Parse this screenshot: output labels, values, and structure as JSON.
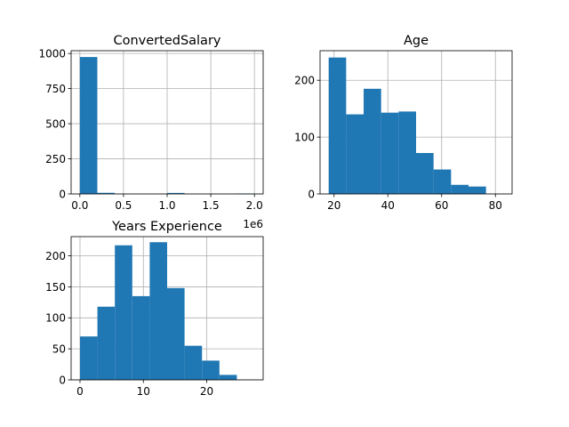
{
  "chart_data": [
    {
      "type": "bar",
      "title": "ConvertedSalary",
      "xlim": [
        -100000,
        2100000
      ],
      "ylim": [
        0,
        1020
      ],
      "xticks": [
        0,
        500000,
        1000000,
        1500000,
        2000000
      ],
      "xtick_labels": [
        "0.0",
        "0.5",
        "1.0",
        "1.5",
        "2.0"
      ],
      "x_offset_label": "1e6",
      "yticks": [
        0,
        250,
        500,
        750,
        1000
      ],
      "ytick_labels": [
        "0",
        "250",
        "500",
        "750",
        "1000"
      ],
      "grid": true,
      "bins": [
        {
          "x0": 0,
          "x1": 200000,
          "count": 975
        },
        {
          "x0": 200000,
          "x1": 400000,
          "count": 8
        },
        {
          "x0": 400000,
          "x1": 600000,
          "count": 0
        },
        {
          "x0": 600000,
          "x1": 800000,
          "count": 0
        },
        {
          "x0": 800000,
          "x1": 1000000,
          "count": 0
        },
        {
          "x0": 1000000,
          "x1": 1200000,
          "count": 7
        },
        {
          "x0": 1200000,
          "x1": 1400000,
          "count": 0
        },
        {
          "x0": 1400000,
          "x1": 1600000,
          "count": 0
        },
        {
          "x0": 1600000,
          "x1": 1800000,
          "count": 0
        },
        {
          "x0": 1800000,
          "x1": 2000000,
          "count": 2
        }
      ]
    },
    {
      "type": "bar",
      "title": "Age",
      "xlim": [
        14.8,
        86.2
      ],
      "ylim": [
        0,
        252
      ],
      "xticks": [
        20,
        40,
        60,
        80
      ],
      "xtick_labels": [
        "20",
        "40",
        "60",
        "80"
      ],
      "yticks": [
        0,
        100,
        200
      ],
      "ytick_labels": [
        "0",
        "100",
        "200"
      ],
      "grid": true,
      "bins": [
        {
          "x0": 18.0,
          "x1": 24.5,
          "count": 240
        },
        {
          "x0": 24.5,
          "x1": 31.0,
          "count": 140
        },
        {
          "x0": 31.0,
          "x1": 37.5,
          "count": 185
        },
        {
          "x0": 37.5,
          "x1": 44.0,
          "count": 143
        },
        {
          "x0": 44.0,
          "x1": 50.5,
          "count": 145
        },
        {
          "x0": 50.5,
          "x1": 57.0,
          "count": 72
        },
        {
          "x0": 57.0,
          "x1": 63.5,
          "count": 43
        },
        {
          "x0": 63.5,
          "x1": 70.0,
          "count": 16
        },
        {
          "x0": 70.0,
          "x1": 76.5,
          "count": 13
        },
        {
          "x0": 76.5,
          "x1": 83.0,
          "count": 0
        }
      ]
    },
    {
      "type": "bar",
      "title": "Years Experience",
      "xlim": [
        -1.4,
        28.9
      ],
      "ylim": [
        0,
        231
      ],
      "xticks": [
        0,
        10,
        20
      ],
      "xtick_labels": [
        "0",
        "10",
        "20"
      ],
      "yticks": [
        0,
        50,
        100,
        150,
        200
      ],
      "ytick_labels": [
        "0",
        "50",
        "100",
        "150",
        "200"
      ],
      "grid": true,
      "bins": [
        {
          "x0": 0.0,
          "x1": 2.75,
          "count": 70
        },
        {
          "x0": 2.75,
          "x1": 5.5,
          "count": 118
        },
        {
          "x0": 5.5,
          "x1": 8.25,
          "count": 217
        },
        {
          "x0": 8.25,
          "x1": 11.0,
          "count": 135
        },
        {
          "x0": 11.0,
          "x1": 13.75,
          "count": 222
        },
        {
          "x0": 13.75,
          "x1": 16.5,
          "count": 148
        },
        {
          "x0": 16.5,
          "x1": 19.25,
          "count": 55
        },
        {
          "x0": 19.25,
          "x1": 22.0,
          "count": 31
        },
        {
          "x0": 22.0,
          "x1": 24.75,
          "count": 8
        },
        {
          "x0": 24.75,
          "x1": 27.5,
          "count": 0
        }
      ]
    }
  ],
  "style": {
    "bar_color": "#1f77b4",
    "grid_color": "#b0b0b0",
    "axis_color": "#000000"
  }
}
